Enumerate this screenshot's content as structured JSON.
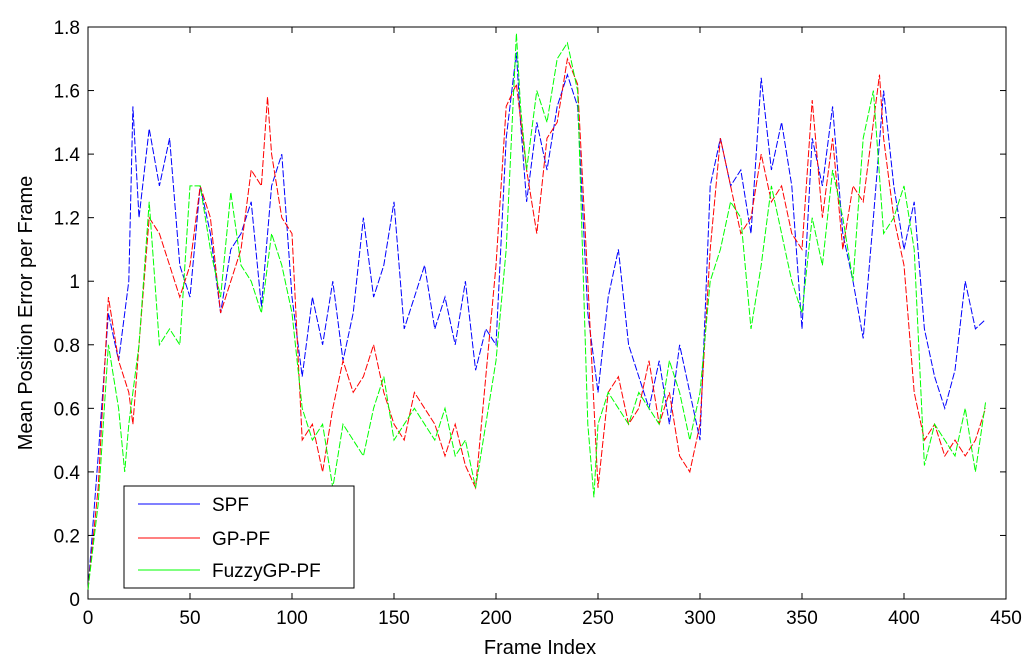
{
  "chart_data": {
    "type": "line",
    "xlabel": "Frame Index",
    "ylabel": "Mean Position Error per Frame",
    "xlim": [
      0,
      450
    ],
    "ylim": [
      0,
      1.8
    ],
    "xticks": [
      "0",
      "50",
      "100",
      "150",
      "200",
      "250",
      "300",
      "350",
      "400",
      "450"
    ],
    "yticks": [
      "0",
      "0.2",
      "0.4",
      "0.6",
      "0.8",
      "1",
      "1.2",
      "1.4",
      "1.6",
      "1.8"
    ],
    "grid": false,
    "legend_position": "bottom-left",
    "series": [
      {
        "name": "SPF",
        "color": "#0000ff",
        "x": [
          0,
          5,
          10,
          15,
          20,
          22,
          25,
          30,
          35,
          40,
          45,
          50,
          55,
          60,
          65,
          70,
          75,
          80,
          85,
          90,
          95,
          100,
          105,
          110,
          115,
          120,
          125,
          130,
          135,
          140,
          145,
          150,
          155,
          160,
          165,
          170,
          175,
          180,
          185,
          190,
          195,
          200,
          205,
          210,
          212,
          215,
          220,
          225,
          230,
          235,
          240,
          245,
          250,
          255,
          260,
          265,
          270,
          275,
          280,
          285,
          290,
          295,
          300,
          305,
          310,
          315,
          320,
          325,
          330,
          335,
          340,
          345,
          350,
          355,
          360,
          365,
          370,
          375,
          380,
          385,
          390,
          395,
          400,
          405,
          410,
          415,
          420,
          425,
          430,
          435,
          440
        ],
        "y": [
          0.03,
          0.45,
          0.9,
          0.75,
          1.0,
          1.55,
          1.2,
          1.48,
          1.3,
          1.45,
          1.05,
          0.95,
          1.3,
          1.15,
          0.9,
          1.1,
          1.15,
          1.25,
          0.92,
          1.3,
          1.4,
          0.95,
          0.7,
          0.95,
          0.8,
          1.0,
          0.75,
          0.9,
          1.2,
          0.95,
          1.05,
          1.25,
          0.85,
          0.95,
          1.05,
          0.85,
          0.95,
          0.8,
          1.0,
          0.72,
          0.85,
          0.8,
          1.45,
          1.72,
          1.5,
          1.25,
          1.5,
          1.35,
          1.55,
          1.65,
          1.55,
          0.9,
          0.65,
          0.95,
          1.1,
          0.8,
          0.7,
          0.6,
          0.75,
          0.55,
          0.8,
          0.65,
          0.5,
          1.3,
          1.45,
          1.3,
          1.35,
          1.15,
          1.64,
          1.35,
          1.5,
          1.3,
          0.85,
          1.45,
          1.3,
          1.55,
          1.15,
          1.0,
          0.82,
          1.2,
          1.6,
          1.3,
          1.1,
          1.25,
          0.85,
          0.7,
          0.6,
          0.72,
          1.0,
          0.85,
          0.88
        ]
      },
      {
        "name": "GP-PF",
        "color": "#ff0000",
        "x": [
          0,
          5,
          10,
          15,
          20,
          22,
          25,
          30,
          35,
          40,
          45,
          50,
          55,
          60,
          65,
          70,
          75,
          80,
          85,
          88,
          90,
          95,
          100,
          105,
          110,
          115,
          120,
          125,
          130,
          135,
          140,
          145,
          150,
          155,
          160,
          165,
          170,
          175,
          180,
          185,
          190,
          195,
          200,
          205,
          210,
          215,
          220,
          225,
          230,
          235,
          240,
          245,
          250,
          255,
          260,
          265,
          270,
          275,
          280,
          285,
          290,
          295,
          300,
          305,
          310,
          315,
          320,
          325,
          330,
          335,
          340,
          345,
          350,
          355,
          360,
          365,
          370,
          375,
          380,
          385,
          388,
          390,
          395,
          400,
          405,
          410,
          415,
          420,
          425,
          430,
          435,
          440
        ],
        "y": [
          0.03,
          0.35,
          0.95,
          0.75,
          0.65,
          0.55,
          0.8,
          1.2,
          1.15,
          1.05,
          0.95,
          1.05,
          1.3,
          1.2,
          0.9,
          1.0,
          1.1,
          1.35,
          1.3,
          1.58,
          1.4,
          1.2,
          1.15,
          0.5,
          0.55,
          0.4,
          0.6,
          0.75,
          0.65,
          0.7,
          0.8,
          0.65,
          0.55,
          0.5,
          0.65,
          0.6,
          0.55,
          0.45,
          0.55,
          0.42,
          0.35,
          0.7,
          1.05,
          1.55,
          1.62,
          1.35,
          1.15,
          1.45,
          1.5,
          1.7,
          1.62,
          1.0,
          0.35,
          0.65,
          0.7,
          0.55,
          0.6,
          0.75,
          0.55,
          0.65,
          0.45,
          0.4,
          0.55,
          1.1,
          1.45,
          1.3,
          1.15,
          1.2,
          1.4,
          1.25,
          1.3,
          1.15,
          1.1,
          1.57,
          1.2,
          1.45,
          1.1,
          1.3,
          1.25,
          1.5,
          1.65,
          1.45,
          1.2,
          1.05,
          0.65,
          0.5,
          0.55,
          0.45,
          0.5,
          0.45,
          0.5,
          0.6
        ]
      },
      {
        "name": "FuzzyGP-PF",
        "color": "#00ff00",
        "x": [
          0,
          5,
          10,
          15,
          18,
          20,
          25,
          30,
          35,
          40,
          45,
          50,
          55,
          60,
          65,
          70,
          75,
          80,
          85,
          90,
          95,
          100,
          105,
          110,
          115,
          120,
          125,
          130,
          135,
          140,
          145,
          150,
          155,
          160,
          165,
          170,
          175,
          180,
          185,
          190,
          195,
          200,
          205,
          210,
          212,
          215,
          220,
          225,
          230,
          235,
          240,
          245,
          248,
          250,
          255,
          260,
          265,
          270,
          275,
          280,
          285,
          290,
          295,
          300,
          305,
          310,
          315,
          320,
          325,
          330,
          335,
          340,
          345,
          350,
          355,
          360,
          365,
          370,
          375,
          380,
          385,
          390,
          395,
          400,
          405,
          410,
          415,
          420,
          425,
          430,
          435,
          440
        ],
        "y": [
          0.03,
          0.3,
          0.8,
          0.6,
          0.4,
          0.55,
          0.8,
          1.25,
          0.8,
          0.85,
          0.8,
          1.3,
          1.3,
          1.1,
          0.95,
          1.28,
          1.05,
          1.0,
          0.9,
          1.15,
          1.05,
          0.9,
          0.6,
          0.5,
          0.55,
          0.35,
          0.55,
          0.5,
          0.45,
          0.6,
          0.7,
          0.5,
          0.55,
          0.6,
          0.55,
          0.5,
          0.6,
          0.45,
          0.5,
          0.35,
          0.55,
          0.75,
          1.1,
          1.78,
          1.55,
          1.35,
          1.6,
          1.5,
          1.7,
          1.75,
          1.6,
          0.55,
          0.32,
          0.55,
          0.65,
          0.6,
          0.55,
          0.65,
          0.6,
          0.55,
          0.75,
          0.65,
          0.5,
          0.65,
          1.0,
          1.1,
          1.25,
          1.2,
          0.85,
          1.05,
          1.3,
          1.15,
          1.0,
          0.9,
          1.2,
          1.05,
          1.35,
          1.2,
          1.0,
          1.45,
          1.6,
          1.15,
          1.2,
          1.3,
          1.1,
          0.42,
          0.55,
          0.5,
          0.45,
          0.6,
          0.4,
          0.62
        ]
      }
    ]
  }
}
